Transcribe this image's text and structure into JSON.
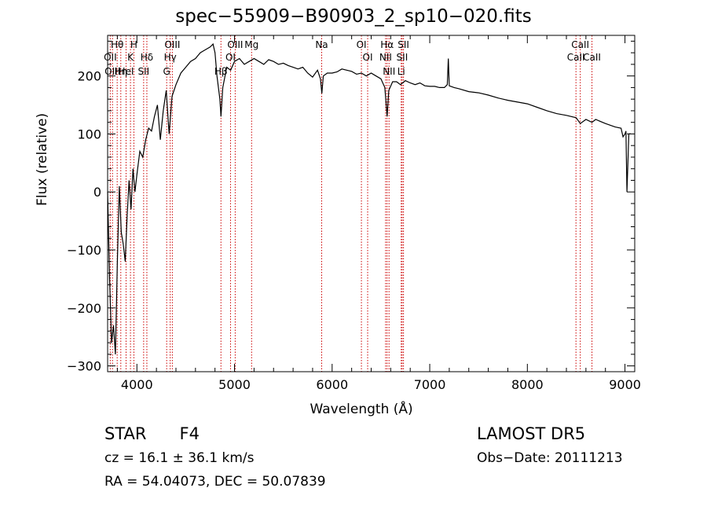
{
  "title": "spec−55909−B90903_2_sp10−020.fits",
  "info": {
    "object_class": "STAR",
    "subclass": "F4",
    "survey": "LAMOST  DR5",
    "cz": "cz = 16.1 ± 36.1 km/s",
    "obs_date": "Obs−Date: 20111213",
    "radec": "RA =  54.04073, DEC =  50.07839"
  },
  "chart_data": {
    "type": "line",
    "title": "spec−55909−B90903_2_sp10−020.fits",
    "xlabel": "Wavelength (Å)",
    "ylabel": "Flux (relative)",
    "xlim": [
      3700,
      9100
    ],
    "ylim": [
      -310,
      270
    ],
    "xticks": [
      4000,
      5000,
      6000,
      7000,
      8000,
      9000
    ],
    "yticks": [
      -300,
      -200,
      -100,
      0,
      100,
      200
    ],
    "grid": false,
    "line_color": "#000000",
    "marker_color": "#cc0000",
    "series": [
      {
        "x": [
          3700,
          3720,
          3740,
          3760,
          3780,
          3800,
          3820,
          3840,
          3860,
          3880,
          3900,
          3920,
          3940,
          3960,
          3980,
          4000,
          4030,
          4060,
          4090,
          4120,
          4150,
          4180,
          4210,
          4240,
          4270,
          4300,
          4330,
          4360,
          4400,
          4450,
          4500,
          4550,
          4600,
          4650,
          4700,
          4750,
          4780,
          4800,
          4820,
          4850,
          4861,
          4880,
          4920,
          4960,
          5000,
          5050,
          5100,
          5150,
          5200,
          5250,
          5300,
          5350,
          5400,
          5450,
          5500,
          5550,
          5600,
          5650,
          5700,
          5750,
          5800,
          5850,
          5880,
          5895,
          5910,
          5950,
          6000,
          6050,
          6100,
          6150,
          6200,
          6250,
          6300,
          6350,
          6400,
          6450,
          6500,
          6540,
          6563,
          6580,
          6620,
          6660,
          6700,
          6750,
          6800,
          6850,
          6900,
          6950,
          7000,
          7050,
          7100,
          7150,
          7180,
          7190,
          7200,
          7250,
          7300,
          7400,
          7500,
          7600,
          7700,
          7800,
          7900,
          8000,
          8100,
          8200,
          8300,
          8400,
          8500,
          8542,
          8600,
          8662,
          8700,
          8800,
          8900,
          8960,
          8980,
          9000,
          9010,
          9020,
          9040,
          9060
        ],
        "y": [
          0,
          -150,
          -260,
          -230,
          -280,
          -120,
          10,
          -70,
          -90,
          -120,
          -40,
          20,
          -30,
          40,
          0,
          30,
          70,
          60,
          90,
          110,
          105,
          130,
          150,
          90,
          140,
          175,
          100,
          165,
          185,
          205,
          215,
          225,
          230,
          240,
          245,
          250,
          255,
          240,
          200,
          160,
          130,
          180,
          215,
          210,
          225,
          230,
          220,
          225,
          230,
          225,
          220,
          228,
          225,
          220,
          222,
          218,
          215,
          212,
          215,
          205,
          198,
          210,
          195,
          170,
          200,
          205,
          205,
          207,
          212,
          210,
          208,
          203,
          205,
          200,
          205,
          200,
          195,
          180,
          130,
          175,
          190,
          190,
          185,
          192,
          188,
          185,
          188,
          183,
          182,
          182,
          180,
          180,
          185,
          230,
          183,
          180,
          178,
          173,
          171,
          167,
          162,
          158,
          155,
          152,
          146,
          140,
          135,
          132,
          128,
          118,
          125,
          120,
          125,
          118,
          112,
          110,
          95,
          100,
          105,
          0,
          100,
          100
        ]
      }
    ],
    "lines": [
      {
        "label": "Hθ",
        "wl": 3798
      },
      {
        "label": "OII",
        "wl": 3727
      },
      {
        "label": "OIII",
        "wl": 3750
      },
      {
        "label": "K",
        "wl": 3934
      },
      {
        "label": "Hη",
        "wl": 3835
      },
      {
        "label": "HeI",
        "wl": 3889
      },
      {
        "label": "H",
        "wl": 3969
      },
      {
        "label": "Hδ",
        "wl": 4102
      },
      {
        "label": "SII",
        "wl": 4069
      },
      {
        "label": "OIII",
        "wl": 4363
      },
      {
        "label": "Hγ",
        "wl": 4341
      },
      {
        "label": "G",
        "wl": 4305
      },
      {
        "label": "OIII",
        "wl": 5007
      },
      {
        "label": "OI",
        "wl": 4959
      },
      {
        "label": "Hβ",
        "wl": 4861
      },
      {
        "label": "Mg",
        "wl": 5175
      },
      {
        "label": "Na",
        "wl": 5893
      },
      {
        "label": "OI",
        "wl": 6300
      },
      {
        "label": "OI",
        "wl": 6364
      },
      {
        "label": "Hα",
        "wl": 6563
      },
      {
        "label": "SII",
        "wl": 6717
      },
      {
        "label": "NII",
        "wl": 6548
      },
      {
        "label": "Li",
        "wl": 6708
      },
      {
        "label": "NII",
        "wl": 6583
      },
      {
        "label": "SII",
        "wl": 6731
      },
      {
        "label": "CaII",
        "wl": 8542
      },
      {
        "label": "CaII",
        "wl": 8498
      },
      {
        "label": "CaII",
        "wl": 8662
      }
    ]
  }
}
